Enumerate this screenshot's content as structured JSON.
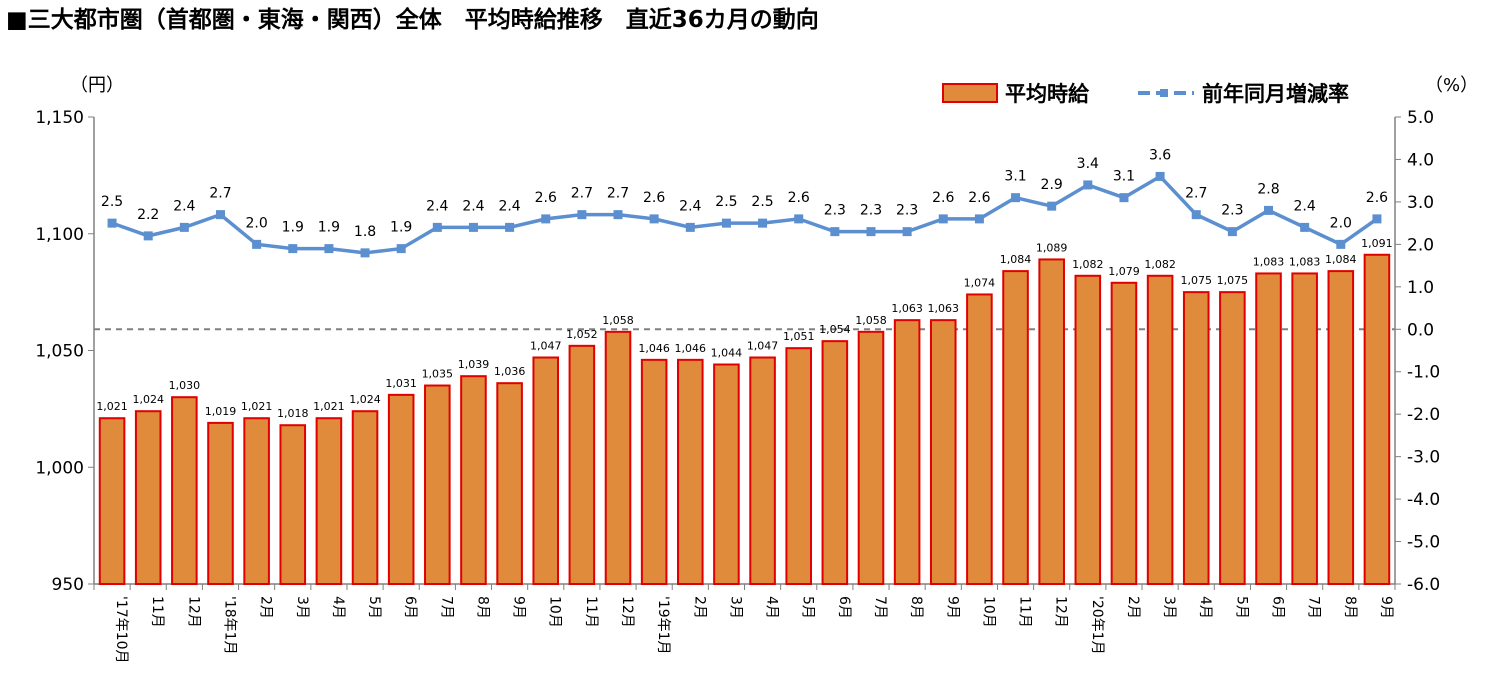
{
  "title": "■三大都市圏（首都圏・東海・関西）全体　平均時給推移　直近36カ月の動向",
  "left_axis_unit": "（円）",
  "right_axis_unit": "（%）",
  "legend": {
    "bar": "平均時給",
    "line": "前年同月増減率"
  },
  "colors": {
    "bar_fill": "#E08A3C",
    "bar_stroke": "#E00000",
    "line": "#5B8FD0",
    "zero_line": "#808080",
    "axis": "#808080"
  },
  "chart_data": {
    "type": "bar",
    "categories": [
      "'17年10月",
      "11月",
      "12月",
      "'18年1月",
      "2月",
      "3月",
      "4月",
      "5月",
      "6月",
      "7月",
      "8月",
      "9月",
      "10月",
      "11月",
      "12月",
      "'19年1月",
      "2月",
      "3月",
      "4月",
      "5月",
      "6月",
      "7月",
      "8月",
      "9月",
      "10月",
      "11月",
      "12月",
      "'20年1月",
      "2月",
      "3月",
      "4月",
      "5月",
      "6月",
      "7月",
      "8月",
      "9月"
    ],
    "series": [
      {
        "name": "平均時給",
        "type": "bar",
        "axis": "left",
        "values": [
          1021,
          1024,
          1030,
          1019,
          1021,
          1018,
          1021,
          1024,
          1031,
          1035,
          1039,
          1036,
          1047,
          1052,
          1058,
          1046,
          1046,
          1044,
          1047,
          1051,
          1054,
          1058,
          1063,
          1063,
          1074,
          1084,
          1089,
          1082,
          1079,
          1082,
          1075,
          1075,
          1083,
          1083,
          1084,
          1091
        ]
      },
      {
        "name": "前年同月増減率",
        "type": "line",
        "axis": "right",
        "values": [
          2.5,
          2.2,
          2.4,
          2.7,
          2.0,
          1.9,
          1.9,
          1.8,
          1.9,
          2.4,
          2.4,
          2.4,
          2.6,
          2.7,
          2.7,
          2.6,
          2.4,
          2.5,
          2.5,
          2.6,
          2.3,
          2.3,
          2.3,
          2.6,
          2.6,
          3.1,
          2.9,
          3.4,
          3.1,
          3.6,
          2.7,
          2.3,
          2.8,
          2.4,
          2.0,
          2.6
        ]
      }
    ],
    "left_ylim": [
      950,
      1150
    ],
    "left_yticks": [
      "950",
      "1,000",
      "1,050",
      "1,100",
      "1,150"
    ],
    "right_ylim": [
      -6.0,
      5.0
    ],
    "right_yticks": [
      "-6.0",
      "-5.0",
      "-4.0",
      "-3.0",
      "-2.0",
      "-1.0",
      "0.0",
      "1.0",
      "2.0",
      "3.0",
      "4.0",
      "5.0"
    ],
    "reference_line": 0.0
  }
}
